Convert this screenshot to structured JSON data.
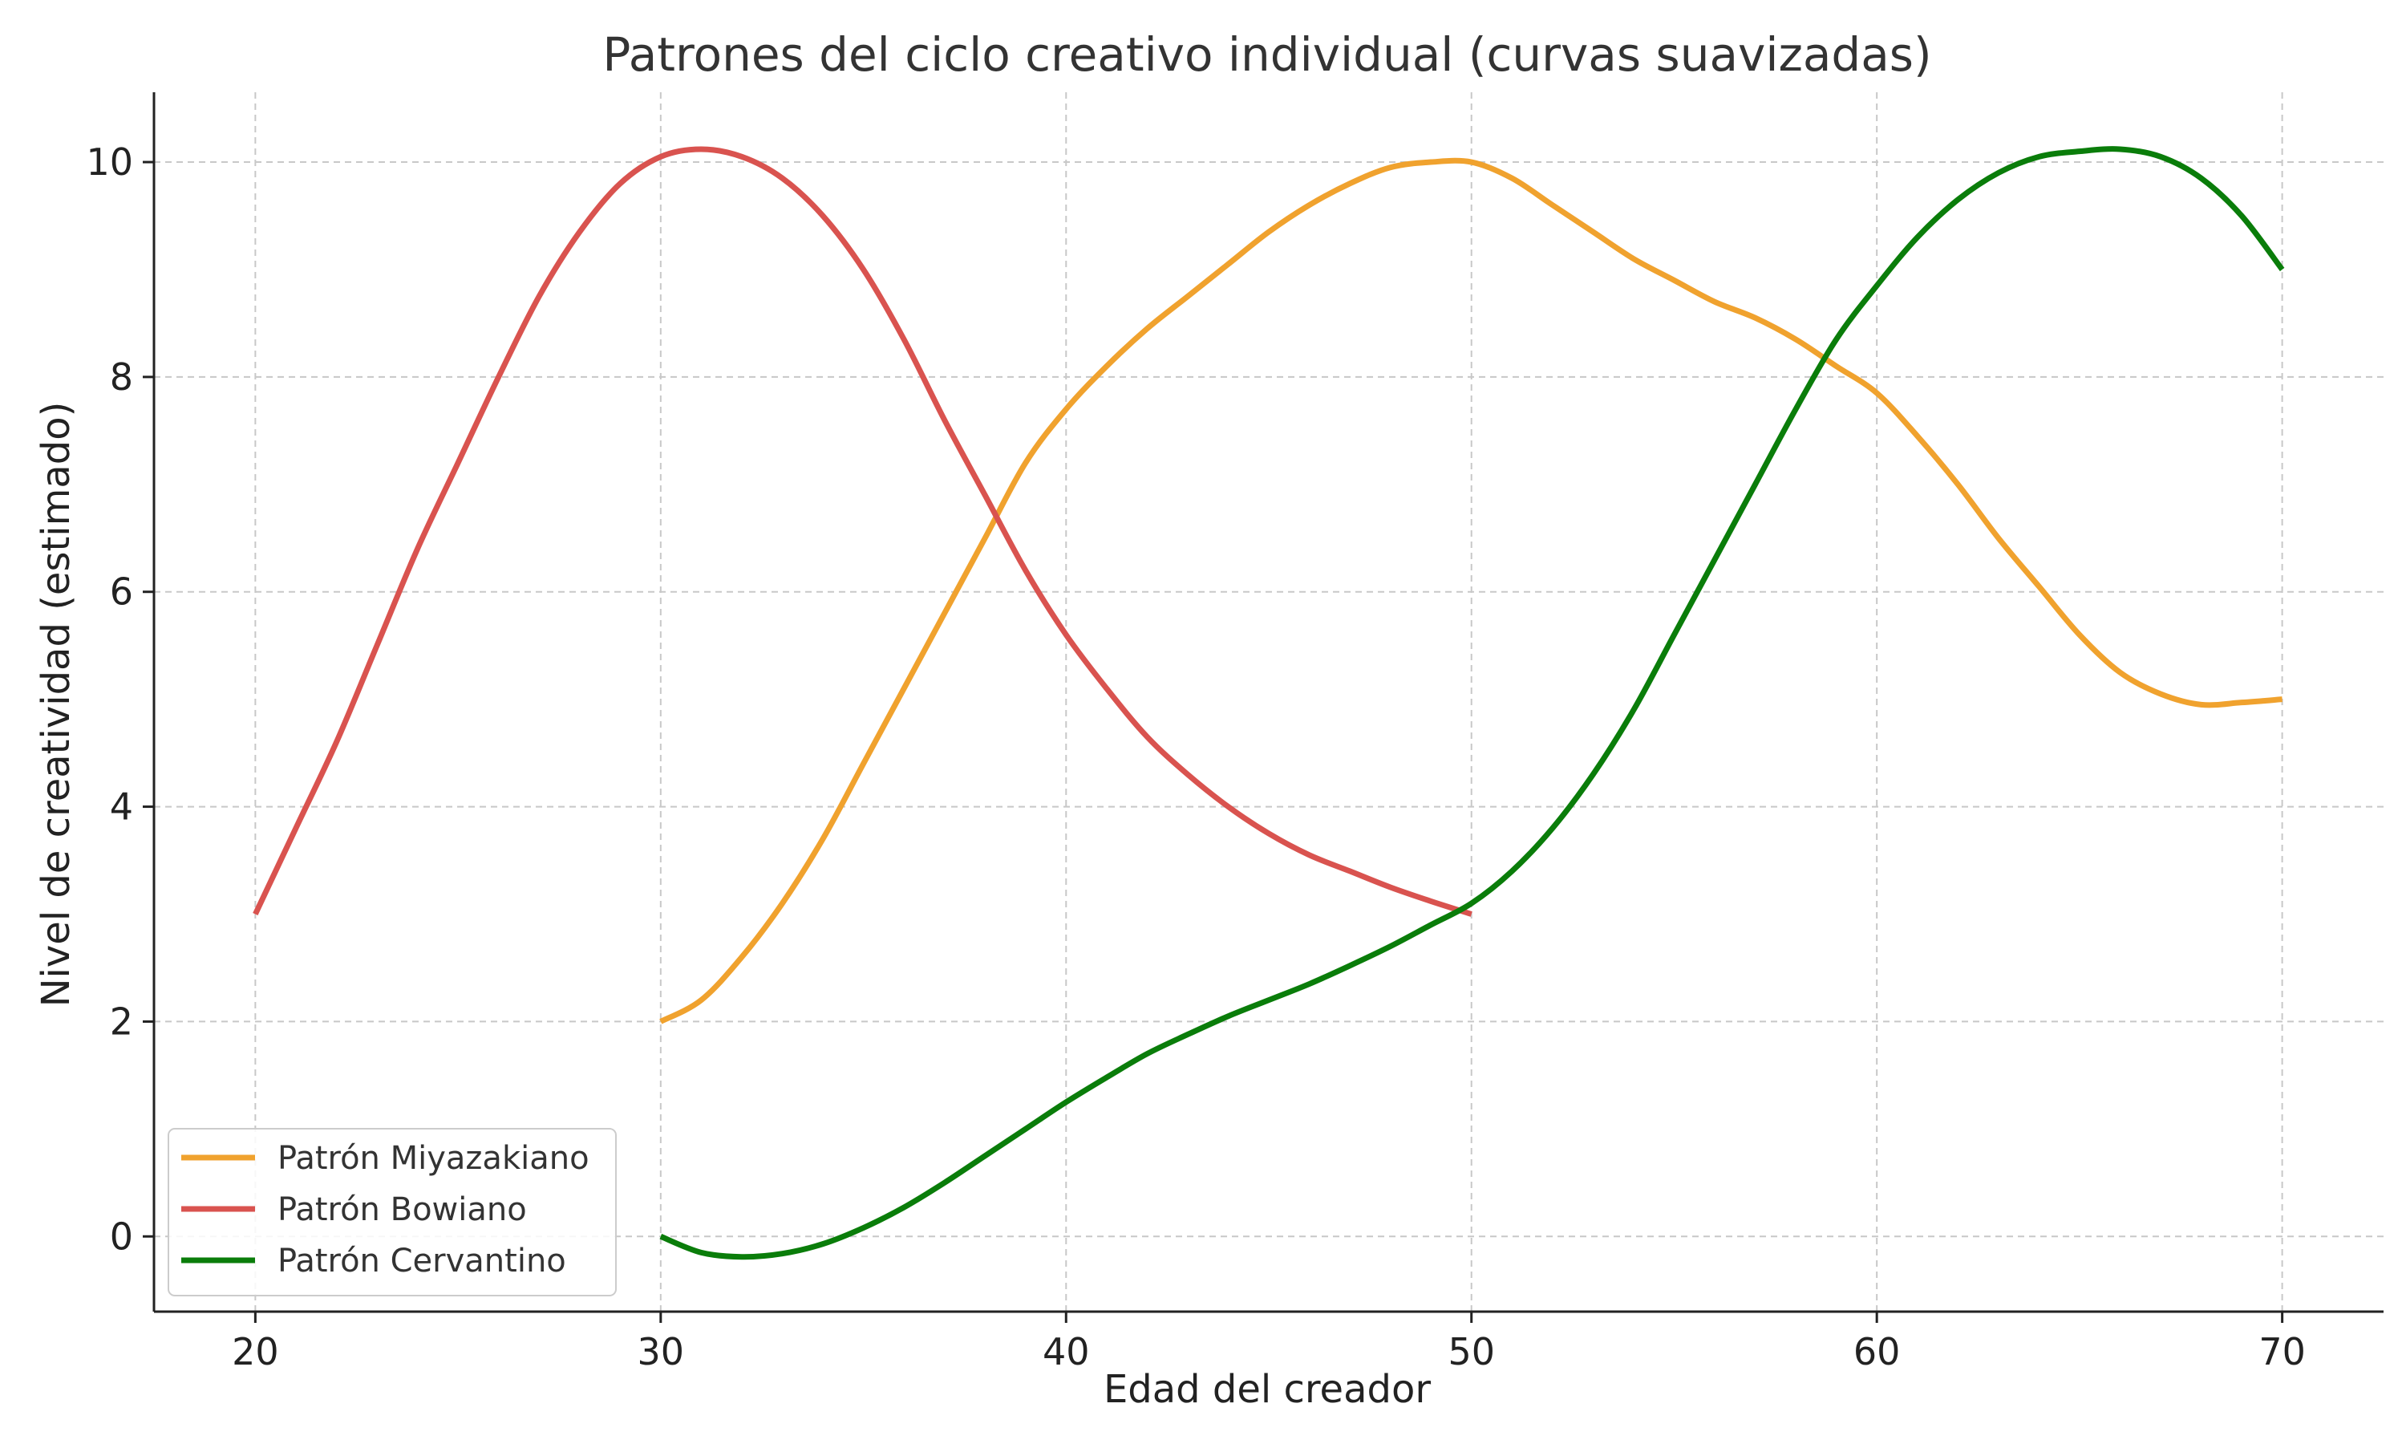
{
  "chart_data": {
    "type": "line",
    "title": "Patrones del ciclo creativo individual (curvas suavizadas)",
    "xlabel": "Edad del creador",
    "ylabel": "Nivel de creatividad (estimado)",
    "xlim": [
      17.5,
      72.5
    ],
    "ylim": [
      -0.7,
      10.65
    ],
    "xticks": [
      20,
      30,
      40,
      50,
      60,
      70
    ],
    "yticks": [
      0,
      2,
      4,
      6,
      8,
      10
    ],
    "xtick_labels": [
      "20",
      "30",
      "40",
      "50",
      "60",
      "70"
    ],
    "ytick_labels": [
      "0",
      "2",
      "4",
      "6",
      "8",
      "10"
    ],
    "grid": true,
    "legend_position": "lower-left",
    "series": [
      {
        "name": "Patrón Miyazakiano",
        "color": "#f0a22e",
        "x": [
          30,
          31,
          32,
          33,
          34,
          35,
          36,
          37,
          38,
          39,
          40,
          41,
          42,
          43,
          44,
          45,
          46,
          47,
          48,
          49,
          50,
          51,
          52,
          53,
          54,
          55,
          56,
          57,
          58,
          59,
          60,
          61,
          62,
          63,
          64,
          65,
          66,
          67,
          68,
          69,
          70
        ],
        "y": [
          2.0,
          2.2,
          2.6,
          3.1,
          3.7,
          4.4,
          5.1,
          5.8,
          6.5,
          7.2,
          7.7,
          8.1,
          8.45,
          8.75,
          9.05,
          9.35,
          9.6,
          9.8,
          9.95,
          10.0,
          10.0,
          9.85,
          9.6,
          9.35,
          9.1,
          8.9,
          8.7,
          8.55,
          8.35,
          8.1,
          7.85,
          7.45,
          7.0,
          6.5,
          6.05,
          5.6,
          5.25,
          5.05,
          4.95,
          4.97,
          5.0
        ]
      },
      {
        "name": "Patrón Bowiano",
        "color": "#d9534f",
        "x": [
          20,
          21,
          22,
          23,
          24,
          25,
          26,
          27,
          28,
          29,
          30,
          31,
          32,
          33,
          34,
          35,
          36,
          37,
          38,
          39,
          40,
          41,
          42,
          43,
          44,
          45,
          46,
          47,
          48,
          49,
          50
        ],
        "y": [
          3.0,
          3.8,
          4.6,
          5.5,
          6.4,
          7.2,
          8.0,
          8.75,
          9.35,
          9.8,
          10.05,
          10.12,
          10.05,
          9.85,
          9.5,
          9.0,
          8.35,
          7.6,
          6.9,
          6.2,
          5.6,
          5.1,
          4.65,
          4.3,
          4.0,
          3.75,
          3.55,
          3.4,
          3.25,
          3.12,
          3.0
        ]
      },
      {
        "name": "Patrón Cervantino",
        "color": "#0a7d0a",
        "x": [
          30,
          31,
          32,
          33,
          34,
          35,
          36,
          37,
          38,
          39,
          40,
          41,
          42,
          43,
          44,
          45,
          46,
          47,
          48,
          49,
          50,
          51,
          52,
          53,
          54,
          55,
          56,
          57,
          58,
          59,
          60,
          61,
          62,
          63,
          64,
          65,
          66,
          67,
          68,
          69,
          70
        ],
        "y": [
          0.0,
          -0.15,
          -0.19,
          -0.16,
          -0.07,
          0.08,
          0.27,
          0.5,
          0.75,
          1.0,
          1.25,
          1.48,
          1.7,
          1.88,
          2.05,
          2.2,
          2.35,
          2.52,
          2.7,
          2.9,
          3.1,
          3.4,
          3.8,
          4.3,
          4.9,
          5.6,
          6.3,
          7.0,
          7.7,
          8.35,
          8.85,
          9.3,
          9.65,
          9.9,
          10.05,
          10.1,
          10.12,
          10.05,
          9.85,
          9.5,
          9.0
        ]
      }
    ]
  }
}
